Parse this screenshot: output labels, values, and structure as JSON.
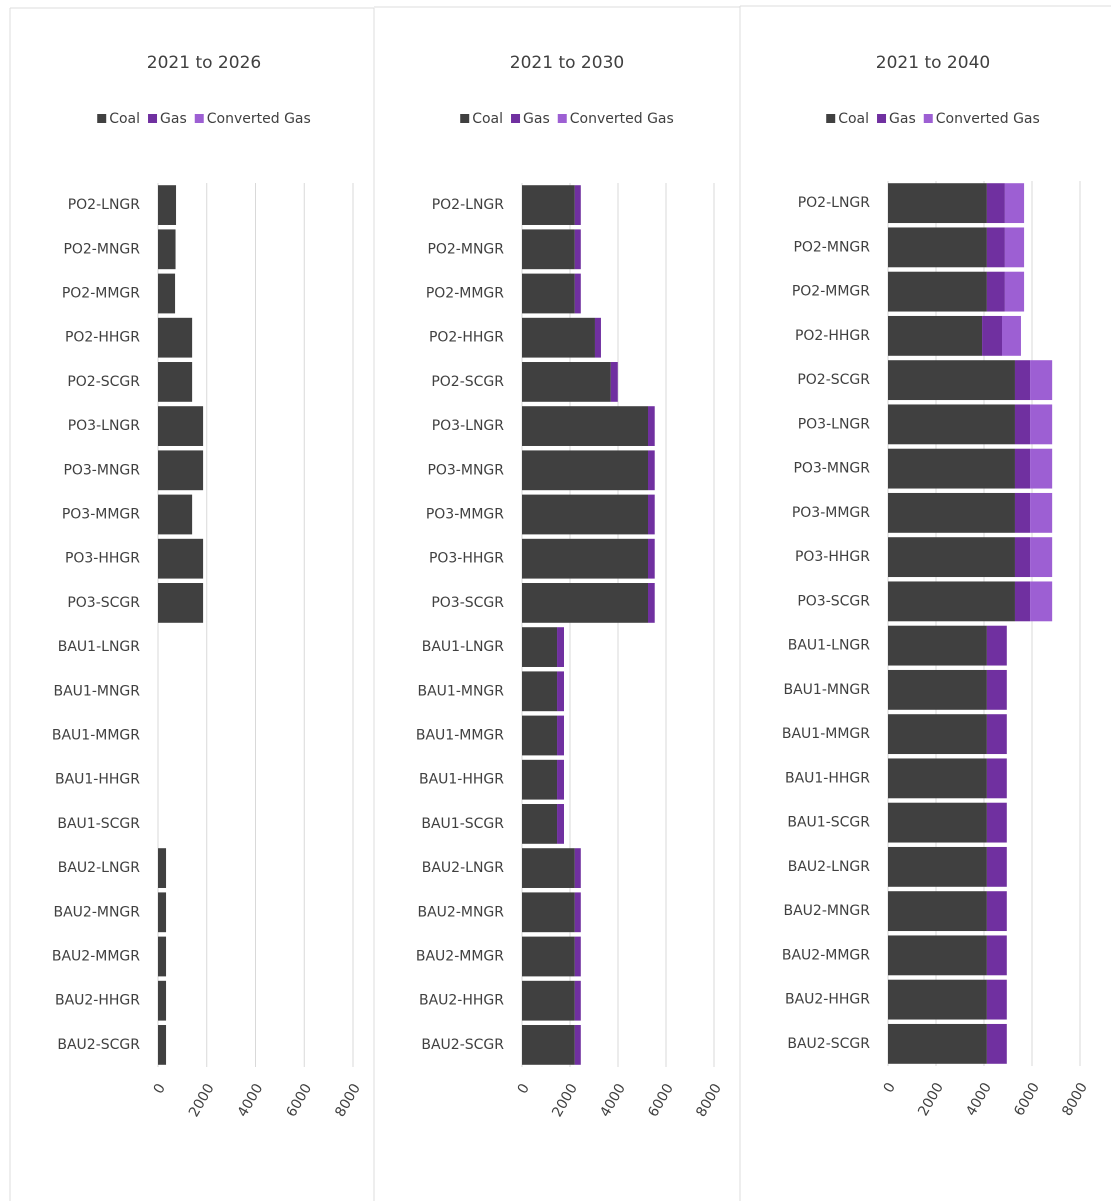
{
  "chart_data": [
    {
      "type": "bar",
      "orientation": "horizontal",
      "stacked": true,
      "title": "2021 to 2026",
      "categories": [
        "PO2-LNGR",
        "PO2-MNGR",
        "PO2-MMGR",
        "PO2-HHGR",
        "PO2-SCGR",
        "PO3-LNGR",
        "PO3-MNGR",
        "PO3-MMGR",
        "PO3-HHGR",
        "PO3-SCGR",
        "BAU1-LNGR",
        "BAU1-MNGR",
        "BAU1-MMGR",
        "BAU1-HHGR",
        "BAU1-SCGR",
        "BAU2-LNGR",
        "BAU2-MNGR",
        "BAU2-MMGR",
        "BAU2-HHGR",
        "BAU2-SCGR"
      ],
      "series": [
        {
          "name": "Coal",
          "color": "#404040",
          "values": [
            740,
            720,
            700,
            1400,
            1400,
            1850,
            1850,
            1400,
            1850,
            1850,
            0,
            0,
            0,
            0,
            0,
            330,
            330,
            330,
            330,
            330
          ]
        },
        {
          "name": "Gas",
          "color": "#7030a0",
          "values": [
            0,
            0,
            0,
            0,
            0,
            0,
            0,
            0,
            0,
            0,
            0,
            0,
            0,
            0,
            0,
            0,
            0,
            0,
            0,
            0
          ]
        },
        {
          "name": "Converted Gas",
          "color": "#9d5fd3",
          "values": [
            0,
            0,
            0,
            0,
            0,
            0,
            0,
            0,
            0,
            0,
            0,
            0,
            0,
            0,
            0,
            0,
            0,
            0,
            0,
            0
          ]
        }
      ],
      "xlim": [
        0,
        8000
      ],
      "xticks": [
        0,
        2000,
        4000,
        6000,
        8000
      ],
      "grid": true
    },
    {
      "type": "bar",
      "orientation": "horizontal",
      "stacked": true,
      "title": "2021 to 2030",
      "categories": [
        "PO2-LNGR",
        "PO2-MNGR",
        "PO2-MMGR",
        "PO2-HHGR",
        "PO2-SCGR",
        "PO3-LNGR",
        "PO3-MNGR",
        "PO3-MMGR",
        "PO3-HHGR",
        "PO3-SCGR",
        "BAU1-LNGR",
        "BAU1-MNGR",
        "BAU1-MMGR",
        "BAU1-HHGR",
        "BAU1-SCGR",
        "BAU2-LNGR",
        "BAU2-MNGR",
        "BAU2-MMGR",
        "BAU2-HHGR",
        "BAU2-SCGR"
      ],
      "series": [
        {
          "name": "Coal",
          "color": "#404040",
          "values": [
            2200,
            2200,
            2200,
            3040,
            3700,
            5250,
            5250,
            5250,
            5250,
            5250,
            1460,
            1460,
            1460,
            1460,
            1460,
            2200,
            2200,
            2200,
            2200,
            2200
          ]
        },
        {
          "name": "Gas",
          "color": "#7030a0",
          "values": [
            250,
            250,
            250,
            250,
            290,
            280,
            280,
            280,
            280,
            280,
            290,
            290,
            290,
            290,
            290,
            250,
            250,
            250,
            250,
            250
          ]
        },
        {
          "name": "Converted Gas",
          "color": "#9d5fd3",
          "values": [
            0,
            0,
            0,
            0,
            0,
            0,
            0,
            0,
            0,
            0,
            0,
            0,
            0,
            0,
            0,
            0,
            0,
            0,
            0,
            0
          ]
        }
      ],
      "xlim": [
        0,
        8000
      ],
      "xticks": [
        0,
        2000,
        4000,
        6000,
        8000
      ],
      "grid": true
    },
    {
      "type": "bar",
      "orientation": "horizontal",
      "stacked": true,
      "title": "2021 to 2040",
      "categories": [
        "PO2-LNGR",
        "PO2-MNGR",
        "PO2-MMGR",
        "PO2-HHGR",
        "PO2-SCGR",
        "PO3-LNGR",
        "PO3-MNGR",
        "PO3-MMGR",
        "PO3-HHGR",
        "PO3-SCGR",
        "BAU1-LNGR",
        "BAU1-MNGR",
        "BAU1-MMGR",
        "BAU1-HHGR",
        "BAU1-SCGR",
        "BAU2-LNGR",
        "BAU2-MNGR",
        "BAU2-MMGR",
        "BAU2-HHGR",
        "BAU2-SCGR"
      ],
      "series": [
        {
          "name": "Coal",
          "color": "#404040",
          "values": [
            4120,
            4120,
            4120,
            3920,
            5290,
            5290,
            5290,
            5290,
            5290,
            5290,
            4120,
            4120,
            4120,
            4120,
            4120,
            4120,
            4120,
            4120,
            4120,
            4120
          ]
        },
        {
          "name": "Gas",
          "color": "#7030a0",
          "values": [
            750,
            750,
            750,
            830,
            630,
            630,
            630,
            630,
            630,
            630,
            830,
            830,
            830,
            830,
            830,
            830,
            830,
            830,
            830,
            830
          ]
        },
        {
          "name": "Converted Gas",
          "color": "#9d5fd3",
          "values": [
            800,
            800,
            800,
            790,
            920,
            920,
            920,
            920,
            920,
            920,
            0,
            0,
            0,
            0,
            0,
            0,
            0,
            0,
            0,
            0
          ]
        }
      ],
      "xlim": [
        0,
        8000
      ],
      "xticks": [
        0,
        2000,
        4000,
        6000,
        8000
      ],
      "grid": true
    }
  ]
}
